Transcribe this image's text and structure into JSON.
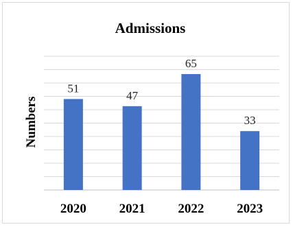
{
  "chart_data": {
    "type": "bar",
    "title": "Admissions",
    "ylabel": "Numbers",
    "xlabel": "",
    "categories": [
      "2020",
      "2021",
      "2022",
      "2023"
    ],
    "values": [
      51,
      47,
      65,
      33
    ],
    "ylim": [
      0,
      75
    ],
    "grid": true,
    "bar_color": "#4472c4",
    "gridline_step": 7.5
  }
}
